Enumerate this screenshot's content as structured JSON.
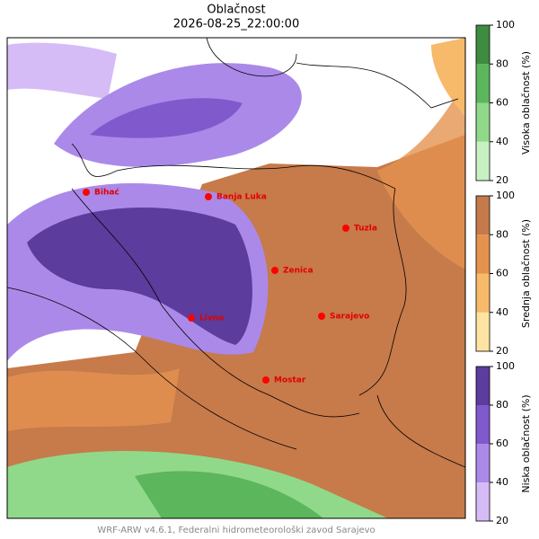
{
  "title": "Oblačnost",
  "valid_time": "2026-08-25_22:00:00",
  "cities": [
    "Bihać",
    "Banja Luka",
    "Tuzla",
    "Zenica",
    "Sarajevo",
    "Livno",
    "Mostar"
  ],
  "colorbars": [
    {
      "label": "Visoka oblačnost (%)",
      "lim": [
        20,
        100
      ],
      "ticks": [
        20,
        40,
        60,
        80,
        100
      ],
      "colors": [
        "#c8f1c3",
        "#90d98b",
        "#5cb65b",
        "#3d8c3f"
      ]
    },
    {
      "label": "Srednja oblačnost (%)",
      "lim": [
        20,
        100
      ],
      "ticks": [
        20,
        40,
        60,
        80,
        100
      ],
      "colors": [
        "#fde4a2",
        "#f7b96a",
        "#e5924f",
        "#c47a4a"
      ]
    },
    {
      "label": "Niska oblačnost (%)",
      "lim": [
        20,
        100
      ],
      "ticks": [
        20,
        40,
        60,
        80,
        100
      ],
      "colors": [
        "#d6bcf6",
        "#ab89e9",
        "#8059cc",
        "#5c3c9c"
      ]
    }
  ],
  "footer": "WRF-ARW v4.6.1, Federalni hidrometeorološki zavod Sarajevo"
}
